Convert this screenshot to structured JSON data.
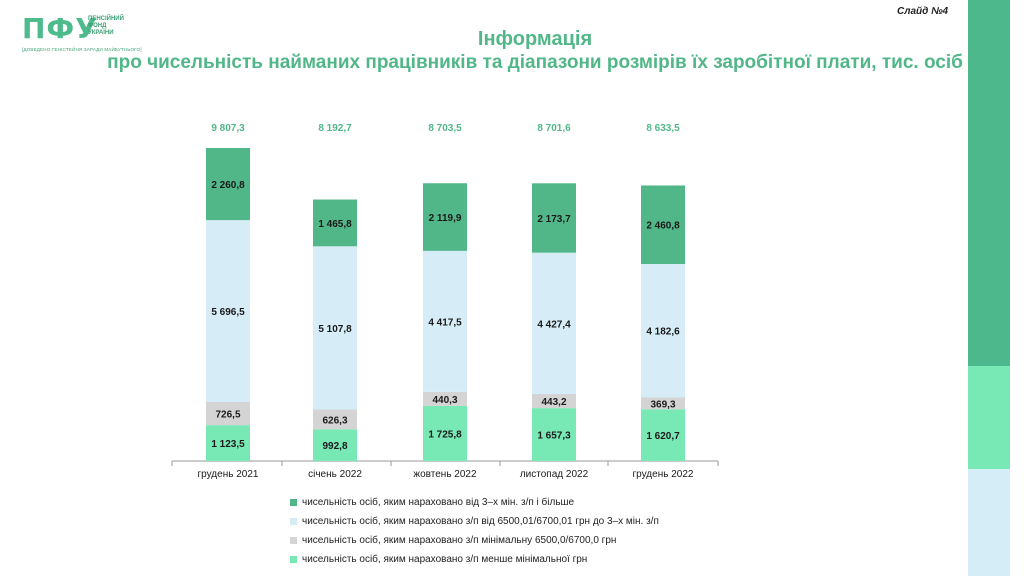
{
  "header": {
    "logo_mark": "ПФУ",
    "logo_lines": [
      "ПЕНСІЙНИЙ",
      "ФОНД",
      "УКРАЇНИ"
    ],
    "logo_sub": "[ДОВЕДЕНО ГЕНІСТЕЙНЯ ЗАРАДИ МАЙБУТНЬОГО]",
    "slide_number": "Слайд №4",
    "title_line1": "Інформація",
    "title_line2": "про чисельність найманих працівників та діапазони розмірів їх заробітної плати, тис. осіб"
  },
  "colors": {
    "title": "#52b788",
    "series": [
      "#52b788",
      "#d6edf8",
      "#d4d4d4",
      "#78e8b5"
    ],
    "side_bands": [
      "#4db88c",
      "#78e8b5",
      "#d5edf7"
    ]
  },
  "chart_data": {
    "type": "bar",
    "stacked": true,
    "categories": [
      "грудень 2021",
      "січень 2022",
      "жовтень 2022",
      "листопад 2022",
      "грудень 2022"
    ],
    "totals": [
      9807.3,
      8192.7,
      8703.5,
      8701.6,
      8633.5
    ],
    "total_labels": [
      "9 807,3",
      "8 192,7",
      "8 703,5",
      "8 701,6",
      "8 633,5"
    ],
    "series": [
      {
        "name": "чисельність осіб, яким нараховано з/п менше мінімальної грн",
        "values": [
          1123.5,
          992.8,
          1725.8,
          1657.3,
          1620.7
        ],
        "labels": [
          "1 123,5",
          "992,8",
          "1 725,8",
          "1 657,3",
          "1 620,7"
        ],
        "color": "#78e8b5"
      },
      {
        "name": "чисельність осіб, яким нараховано з/п  мінімальну 6500,0/6700,0 грн",
        "values": [
          726.5,
          626.3,
          440.3,
          443.2,
          369.3
        ],
        "labels": [
          "726,5",
          "626,3",
          "440,3",
          "443,2",
          "369,3"
        ],
        "color": "#d4d4d4"
      },
      {
        "name": "чисельність осіб, яким нараховано з/п від 6500,01/6700,01 грн до 3–х мін. з/п",
        "values": [
          5696.5,
          5107.8,
          4417.5,
          4427.4,
          4182.6
        ],
        "labels": [
          "5 696,5",
          "5 107,8",
          "4 417,5",
          "4 427,4",
          "4 182,6"
        ],
        "color": "#d6edf8"
      },
      {
        "name": "чисельність осіб, яким нараховано від 3–х мін. з/п і більше",
        "values": [
          2260.8,
          1465.8,
          2119.9,
          2173.7,
          2460.8
        ],
        "labels": [
          "2 260,8",
          "1 465,8",
          "2 119,9",
          "2 173,7",
          "2 460,8"
        ],
        "color": "#52b788"
      }
    ],
    "legend": [
      "чисельність осіб, яким нараховано від 3–х мін. з/п і більше",
      "чисельність осіб, яким нараховано з/п від 6500,01/6700,01 грн до 3–х мін. з/п",
      "чисельність осіб, яким нараховано з/п  мінімальну 6500,0/6700,0 грн",
      "чисельність осіб, яким нараховано з/п менше мінімальної грн"
    ],
    "legend_placement": "bottom",
    "grid": false
  }
}
